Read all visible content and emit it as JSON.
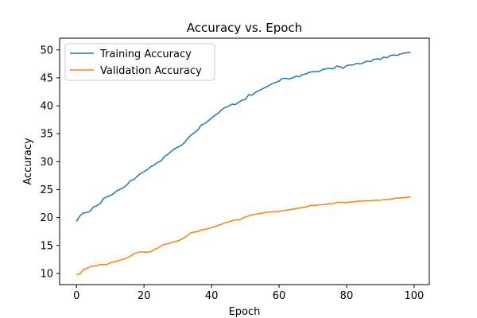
{
  "chart_data": {
    "type": "line",
    "title": "Accuracy vs. Epoch",
    "xlabel": "Epoch",
    "ylabel": "Accuracy",
    "xlim": [
      -5,
      104.5
    ],
    "ylim": [
      8.0,
      52.1
    ],
    "xticks": [
      0,
      20,
      40,
      60,
      80,
      100
    ],
    "yticks": [
      10,
      15,
      20,
      25,
      30,
      35,
      40,
      45,
      50
    ],
    "grid": false,
    "legend_position": "top-left",
    "x": [
      0,
      1,
      2,
      3,
      4,
      5,
      6,
      7,
      8,
      9,
      10,
      11,
      12,
      13,
      14,
      15,
      16,
      17,
      18,
      19,
      20,
      21,
      22,
      23,
      24,
      25,
      26,
      27,
      28,
      29,
      30,
      31,
      32,
      33,
      34,
      35,
      36,
      37,
      38,
      39,
      40,
      41,
      42,
      43,
      44,
      45,
      46,
      47,
      48,
      49,
      50,
      51,
      52,
      53,
      54,
      55,
      56,
      57,
      58,
      59,
      60,
      61,
      62,
      63,
      64,
      65,
      66,
      67,
      68,
      69,
      70,
      71,
      72,
      73,
      74,
      75,
      76,
      77,
      78,
      79,
      80,
      81,
      82,
      83,
      84,
      85,
      86,
      87,
      88,
      89,
      90,
      91,
      92,
      93,
      94,
      95,
      96,
      97,
      98,
      99
    ],
    "series": [
      {
        "name": "Training Accuracy",
        "color": "#1f77b4",
        "values": [
          19.3,
          20.3,
          20.8,
          20.9,
          21.1,
          21.9,
          22.1,
          22.5,
          23.4,
          23.7,
          23.9,
          24.3,
          24.8,
          25.1,
          25.4,
          25.9,
          26.6,
          26.8,
          27.4,
          27.9,
          28.2,
          28.6,
          29.1,
          29.4,
          29.9,
          30.1,
          30.9,
          31.3,
          31.8,
          32.3,
          32.6,
          32.9,
          33.4,
          34.2,
          34.8,
          35.2,
          35.7,
          36.6,
          36.8,
          37.3,
          37.8,
          38.3,
          38.7,
          39.3,
          39.7,
          39.9,
          40.3,
          40.2,
          40.6,
          41.0,
          41.1,
          42.0,
          41.9,
          42.4,
          42.7,
          43.0,
          43.3,
          43.6,
          44.0,
          44.2,
          44.4,
          44.9,
          44.9,
          44.8,
          45.0,
          45.3,
          45.2,
          45.6,
          45.7,
          46.0,
          46.1,
          46.1,
          46.2,
          46.5,
          46.6,
          46.7,
          46.6,
          47.1,
          47.0,
          46.7,
          47.2,
          47.3,
          47.3,
          47.6,
          47.5,
          47.7,
          48.0,
          47.9,
          48.3,
          48.4,
          48.3,
          48.7,
          48.6,
          49.0,
          49.1,
          49.0,
          49.3,
          49.4,
          49.5,
          49.6
        ]
      },
      {
        "name": "Validation Accuracy",
        "color": "#ff7f0e",
        "values": [
          9.8,
          9.9,
          10.7,
          10.9,
          11.2,
          11.3,
          11.4,
          11.6,
          11.6,
          11.6,
          11.9,
          12.1,
          12.2,
          12.4,
          12.6,
          12.8,
          13.1,
          13.5,
          13.7,
          13.9,
          13.8,
          13.8,
          13.9,
          14.3,
          14.5,
          14.9,
          15.2,
          15.3,
          15.5,
          15.7,
          15.8,
          16.1,
          16.4,
          16.9,
          17.3,
          17.4,
          17.5,
          17.8,
          17.9,
          18.0,
          18.2,
          18.4,
          18.6,
          18.8,
          19.1,
          19.2,
          19.4,
          19.6,
          19.6,
          19.8,
          20.1,
          20.3,
          20.5,
          20.6,
          20.7,
          20.8,
          20.9,
          21.0,
          21.0,
          21.1,
          21.1,
          21.2,
          21.3,
          21.4,
          21.5,
          21.6,
          21.7,
          21.8,
          21.9,
          22.1,
          22.2,
          22.2,
          22.3,
          22.3,
          22.4,
          22.5,
          22.5,
          22.7,
          22.7,
          22.7,
          22.7,
          22.8,
          22.8,
          22.9,
          22.9,
          23.0,
          23.0,
          23.0,
          23.1,
          23.1,
          23.1,
          23.2,
          23.2,
          23.3,
          23.4,
          23.5,
          23.5,
          23.6,
          23.6,
          23.7
        ]
      }
    ]
  }
}
